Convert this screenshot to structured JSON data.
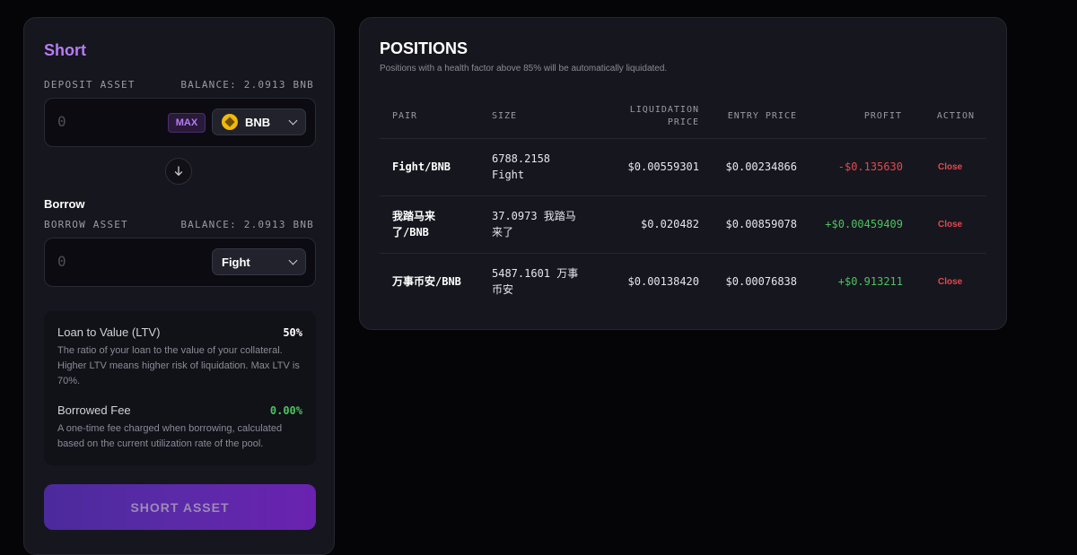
{
  "short": {
    "title": "Short",
    "deposit_label": "DEPOSIT ASSET",
    "deposit_balance": "BALANCE: 2.0913 BNB",
    "deposit_placeholder": "0",
    "max_label": "MAX",
    "deposit_token": "BNB",
    "borrow_title": "Borrow",
    "borrow_label": "BORROW ASSET",
    "borrow_balance": "BALANCE: 2.0913 BNB",
    "borrow_placeholder": "0",
    "borrow_token": "Fight",
    "ltv_label": "Loan to Value (LTV)",
    "ltv_value": "50%",
    "ltv_desc": "The ratio of your loan to the value of your collateral. Higher LTV means higher risk of liquidation. Max LTV is 70%.",
    "fee_label": "Borrowed Fee",
    "fee_value": "0.00%",
    "fee_desc": "A one-time fee charged when borrowing, calculated based on the current utilization rate of the pool.",
    "submit_label": "SHORT ASSET"
  },
  "positions": {
    "title": "POSITIONS",
    "subtitle": "Positions with a health factor above 85% will be automatically liquidated.",
    "headers": {
      "pair": "PAIR",
      "size": "SIZE",
      "liq_line1": "LIQUIDATION",
      "liq_line2": "PRICE",
      "entry": "ENTRY PRICE",
      "profit": "PROFIT",
      "action": "ACTION"
    },
    "rows": [
      {
        "pair_line1": "Fight/BNB",
        "pair_line2": "",
        "size_line1": "6788.2158",
        "size_line2": "Fight",
        "liq": "$0.00559301",
        "entry": "$0.00234866",
        "profit": "-$0.135630",
        "action": "Close"
      },
      {
        "pair_line1": "我踏马来",
        "pair_line2": "了/BNB",
        "size_line1": "37.0973 我踏马",
        "size_line2": "来了",
        "liq": "$0.020482",
        "entry": "$0.00859078",
        "profit": "+$0.00459409",
        "action": "Close"
      },
      {
        "pair_line1": "万事币安/BNB",
        "pair_line2": "",
        "size_line1": "5487.1601 万事",
        "size_line2": "币安",
        "liq": "$0.00138420",
        "entry": "$0.00076838",
        "profit": "+$0.913211",
        "action": "Close"
      }
    ]
  },
  "colors": {
    "accent": "#b77cf5",
    "negative": "#e5484d",
    "positive": "#4cc35e"
  }
}
